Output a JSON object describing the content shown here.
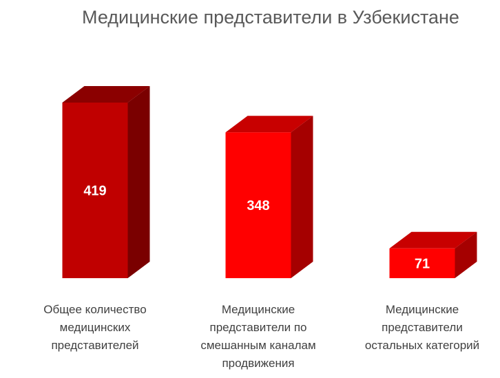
{
  "chart_data": {
    "type": "bar",
    "title": "Медицинские представители в Узбекистане",
    "categories": [
      "Общее количество медицинских представителей",
      "Медицинские представители по смешанным каналам продвижения",
      "Медицинские представители остальных категорий"
    ],
    "category_lines": [
      [
        "Общее количество",
        "медицинских",
        "представителей"
      ],
      [
        "Медицинские",
        "представители по",
        "смешанным каналам",
        "продвижения"
      ],
      [
        "Медицинские",
        "представители",
        "остальных категорий"
      ]
    ],
    "values": [
      419,
      348,
      71
    ],
    "data_labels": [
      "419",
      "348",
      "71"
    ],
    "ylim": [
      0,
      419
    ],
    "grid": false,
    "legend": "none",
    "bar_style": "3d",
    "colors": {
      "bars": [
        {
          "front": "#c00000",
          "top": "#8b0000",
          "side": "#7a0000"
        },
        {
          "front": "#ff0000",
          "top": "#c80000",
          "side": "#a50000"
        },
        {
          "front": "#ff0000",
          "top": "#c80000",
          "side": "#a50000"
        }
      ],
      "data_label": "#ffffff",
      "title": "#595959",
      "category_label": "#404040"
    }
  }
}
